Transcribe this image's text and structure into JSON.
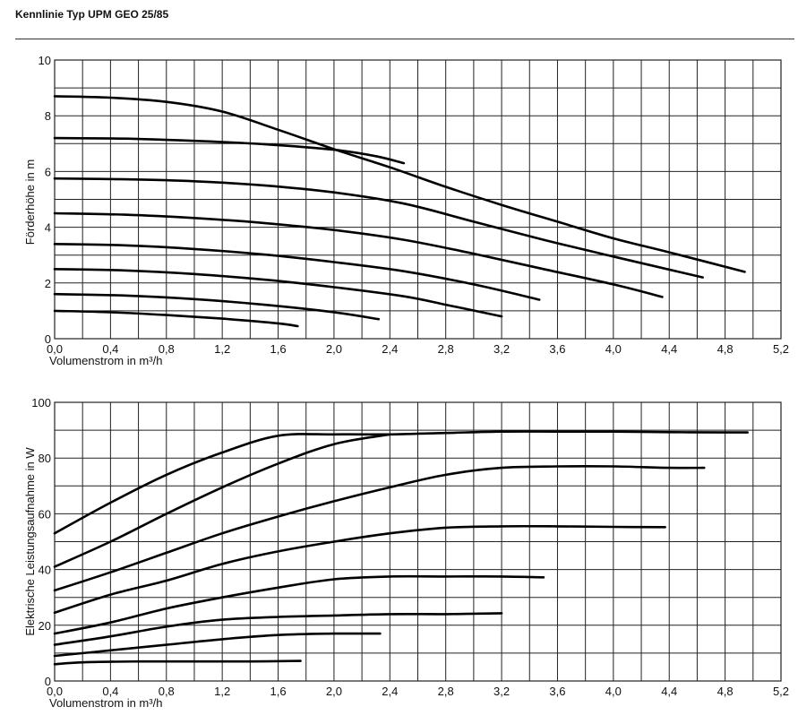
{
  "page": {
    "title": "Kennlinie Typ UPM GEO 25/85"
  },
  "chart_data": [
    {
      "type": "line",
      "xlabel": "Volumenstrom in m³/h",
      "ylabel": "Förderhöhe in m",
      "xlim": [
        0,
        5.2
      ],
      "ylim": [
        0,
        10
      ],
      "xticks": [
        "0,0",
        "0,4",
        "0,8",
        "1,2",
        "1,6",
        "2,0",
        "2,4",
        "2,8",
        "3,2",
        "3,6",
        "4,0",
        "4,4",
        "4,8",
        "5,2"
      ],
      "yticks": [
        "0",
        "2",
        "4",
        "6",
        "8",
        "10"
      ],
      "grid": true,
      "series": [
        {
          "x": [
            0.0,
            0.4,
            0.8,
            1.2,
            1.6,
            1.74
          ],
          "y": [
            1.0,
            0.95,
            0.85,
            0.72,
            0.55,
            0.45
          ]
        },
        {
          "x": [
            0.0,
            0.5,
            1.0,
            1.5,
            2.0,
            2.32
          ],
          "y": [
            1.6,
            1.55,
            1.42,
            1.22,
            0.95,
            0.7
          ]
        },
        {
          "x": [
            0.0,
            0.5,
            1.0,
            1.5,
            2.0,
            2.5,
            2.8,
            3.2
          ],
          "y": [
            2.5,
            2.45,
            2.32,
            2.12,
            1.85,
            1.52,
            1.22,
            0.8
          ]
        },
        {
          "x": [
            0.0,
            0.5,
            1.0,
            1.5,
            2.0,
            2.5,
            3.0,
            3.47
          ],
          "y": [
            3.4,
            3.35,
            3.22,
            3.02,
            2.75,
            2.42,
            1.95,
            1.4
          ]
        },
        {
          "x": [
            0.0,
            0.5,
            1.0,
            1.5,
            2.0,
            2.5,
            3.0,
            3.5,
            4.0,
            4.35
          ],
          "y": [
            4.5,
            4.45,
            4.33,
            4.15,
            3.9,
            3.55,
            3.05,
            2.5,
            1.95,
            1.5
          ]
        },
        {
          "x": [
            0.0,
            0.5,
            1.0,
            1.5,
            2.0,
            2.5,
            3.0,
            3.5,
            4.0,
            4.64
          ],
          "y": [
            5.75,
            5.72,
            5.65,
            5.5,
            5.25,
            4.85,
            4.2,
            3.55,
            2.95,
            2.2
          ]
        },
        {
          "x": [
            0.0,
            0.5,
            1.0,
            1.5,
            2.0,
            2.3,
            2.5
          ],
          "y": [
            7.2,
            7.18,
            7.1,
            6.98,
            6.78,
            6.55,
            6.3
          ]
        },
        {
          "x": [
            0.0,
            0.4,
            0.8,
            1.2,
            1.6,
            2.0,
            2.4,
            2.8,
            3.2,
            3.6,
            4.0,
            4.4,
            4.94
          ],
          "y": [
            8.7,
            8.65,
            8.5,
            8.15,
            7.5,
            6.8,
            6.15,
            5.45,
            4.8,
            4.2,
            3.6,
            3.1,
            2.4
          ]
        }
      ]
    },
    {
      "type": "line",
      "xlabel": "Volumenstrom in m³/h",
      "ylabel": "Elektrische Leistungsaufnahme in W",
      "xlim": [
        0,
        5.2
      ],
      "ylim": [
        0,
        100
      ],
      "xticks": [
        "0,0",
        "0,4",
        "0,8",
        "1,2",
        "1,6",
        "2,0",
        "2,4",
        "2,8",
        "3,2",
        "3,6",
        "4,0",
        "4,4",
        "4,8",
        "5,2"
      ],
      "yticks": [
        "0",
        "20",
        "40",
        "60",
        "80",
        "100"
      ],
      "grid": true,
      "series": [
        {
          "x": [
            0.0,
            0.2,
            0.6,
            1.0,
            1.4,
            1.76
          ],
          "y": [
            6,
            6.7,
            7,
            7,
            7,
            7.2
          ]
        },
        {
          "x": [
            0.0,
            0.4,
            0.8,
            1.2,
            1.6,
            2.0,
            2.33
          ],
          "y": [
            9,
            11,
            13,
            15,
            16.5,
            17,
            17
          ]
        },
        {
          "x": [
            0.0,
            0.4,
            0.8,
            1.2,
            1.6,
            2.0,
            2.4,
            2.8,
            3.2
          ],
          "y": [
            13,
            16,
            19.5,
            22,
            23,
            23.5,
            24,
            24,
            24.3
          ]
        },
        {
          "x": [
            0.0,
            0.4,
            0.8,
            1.2,
            1.6,
            2.0,
            2.4,
            2.8,
            3.2,
            3.5
          ],
          "y": [
            17,
            21,
            26,
            30,
            33.5,
            36.5,
            37.5,
            37.5,
            37.5,
            37.2
          ]
        },
        {
          "x": [
            0.0,
            0.4,
            0.8,
            1.2,
            1.6,
            2.0,
            2.4,
            2.8,
            3.2,
            3.6,
            4.0,
            4.37
          ],
          "y": [
            24.5,
            31,
            36,
            42,
            46.5,
            50,
            53,
            55,
            55.5,
            55.5,
            55.3,
            55.2
          ]
        },
        {
          "x": [
            0.0,
            0.4,
            0.8,
            1.2,
            1.6,
            2.0,
            2.4,
            2.8,
            3.2,
            3.6,
            4.0,
            4.4,
            4.65
          ],
          "y": [
            32.5,
            39,
            46,
            53,
            59,
            64.5,
            69.5,
            74,
            76.5,
            77,
            77,
            76.5,
            76.5
          ]
        },
        {
          "x": [
            0.0,
            0.4,
            0.8,
            1.2,
            1.6,
            2.0,
            2.4
          ],
          "y": [
            41,
            50,
            60,
            69.5,
            78,
            85,
            88.5
          ]
        },
        {
          "x": [
            0.0,
            0.4,
            0.8,
            1.2,
            1.6,
            2.0,
            2.4,
            2.8,
            3.2,
            3.6,
            4.0,
            4.4,
            4.8,
            4.96
          ],
          "y": [
            53,
            64,
            74,
            82,
            88,
            88.5,
            88.5,
            89,
            89.5,
            89.5,
            89.5,
            89.3,
            89.2,
            89.2
          ]
        }
      ]
    }
  ]
}
